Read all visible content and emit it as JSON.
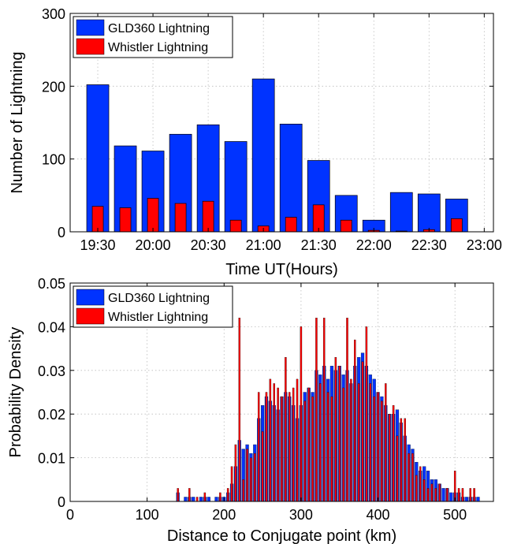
{
  "chart_data": [
    {
      "type": "bar",
      "grid": true,
      "xlabel": "Time UT(Hours)",
      "ylabel": "Number of Lightning",
      "ylim": [
        0,
        300
      ],
      "yticks": [
        0,
        100,
        200,
        300
      ],
      "xlim": [
        19.25,
        23.0833
      ],
      "xticks": [
        19.5,
        20,
        20.5,
        21,
        21.5,
        22,
        22.5,
        23
      ],
      "xtick_labels": [
        "19:30",
        "20:00",
        "20:30",
        "21:00",
        "21:30",
        "22:00",
        "22:30",
        "23:00"
      ],
      "legend_position": "top-left",
      "x": [
        19.5,
        19.75,
        20,
        20.25,
        20.5,
        20.75,
        21,
        21.25,
        21.5,
        21.75,
        22,
        22.25,
        22.5,
        22.75
      ],
      "series": [
        {
          "name": "GLD360 Lightning",
          "color": "#0033ff",
          "values": [
            202,
            118,
            111,
            134,
            147,
            124,
            210,
            148,
            98,
            50,
            16,
            54,
            52,
            45
          ]
        },
        {
          "name": "Whistler Lightning",
          "color": "#ff0000",
          "values": [
            35,
            33,
            46,
            39,
            42,
            16,
            8,
            20,
            37,
            16,
            2,
            1,
            3,
            18
          ]
        }
      ]
    },
    {
      "type": "bar",
      "grid": true,
      "xlabel": "Distance to Conjugate point (km)",
      "ylabel": "Probability Density",
      "xlim": [
        0,
        550
      ],
      "ylim": [
        0,
        0.05
      ],
      "xticks": [
        0,
        100,
        200,
        300,
        400,
        500
      ],
      "yticks": [
        0,
        0.01,
        0.02,
        0.03,
        0.04,
        0.05
      ],
      "legend_position": "top-left",
      "bin_width": 5,
      "series": [
        {
          "name": "GLD360 Lightning",
          "color": "#0033ff",
          "x": [
            140,
            145,
            150,
            155,
            160,
            165,
            170,
            175,
            180,
            185,
            190,
            195,
            200,
            205,
            210,
            215,
            220,
            225,
            230,
            235,
            240,
            245,
            250,
            255,
            260,
            265,
            270,
            275,
            280,
            285,
            290,
            295,
            300,
            305,
            310,
            315,
            320,
            325,
            330,
            335,
            340,
            345,
            350,
            355,
            360,
            365,
            370,
            375,
            380,
            385,
            390,
            395,
            400,
            405,
            410,
            415,
            420,
            425,
            430,
            435,
            440,
            445,
            450,
            455,
            460,
            465,
            470,
            475,
            480,
            485,
            490,
            495,
            500,
            505,
            510,
            515,
            520,
            525,
            530
          ],
          "values": [
            0.002,
            0.0,
            0.001,
            0.001,
            0.001,
            0.0,
            0.001,
            0.001,
            0.001,
            0.0,
            0.001,
            0.001,
            0.001,
            0.002,
            0.004,
            0.008,
            0.014,
            0.012,
            0.013,
            0.011,
            0.013,
            0.019,
            0.022,
            0.024,
            0.023,
            0.022,
            0.021,
            0.024,
            0.025,
            0.024,
            0.022,
            0.019,
            0.022,
            0.025,
            0.026,
            0.025,
            0.03,
            0.029,
            0.031,
            0.028,
            0.031,
            0.03,
            0.031,
            0.029,
            0.03,
            0.027,
            0.031,
            0.033,
            0.034,
            0.031,
            0.029,
            0.028,
            0.025,
            0.024,
            0.022,
            0.02,
            0.02,
            0.021,
            0.018,
            0.015,
            0.013,
            0.012,
            0.009,
            0.007,
            0.008,
            0.007,
            0.005,
            0.005,
            0.004,
            0.003,
            0.003,
            0.002,
            0.002,
            0.002,
            0.001,
            0.001,
            0.001,
            0.001,
            0.001
          ]
        },
        {
          "name": "Whistler Lightning",
          "color": "#ff0000",
          "x": [
            140,
            155,
            165,
            175,
            195,
            205,
            210,
            215,
            220,
            225,
            230,
            235,
            240,
            245,
            250,
            255,
            260,
            265,
            270,
            275,
            280,
            285,
            290,
            295,
            300,
            305,
            310,
            315,
            320,
            325,
            330,
            335,
            340,
            345,
            350,
            355,
            360,
            365,
            370,
            375,
            380,
            385,
            390,
            395,
            400,
            405,
            410,
            415,
            420,
            425,
            430,
            435,
            440,
            445,
            450,
            455,
            460,
            465,
            470,
            475,
            480,
            490,
            500,
            505,
            510,
            520,
            525
          ],
          "values": [
            0.003,
            0.003,
            0.001,
            0.002,
            0.002,
            0.003,
            0.008,
            0.013,
            0.042,
            0.005,
            0.012,
            0.01,
            0.011,
            0.025,
            0.016,
            0.025,
            0.028,
            0.027,
            0.026,
            0.024,
            0.033,
            0.025,
            0.026,
            0.028,
            0.04,
            0.023,
            0.026,
            0.024,
            0.042,
            0.027,
            0.042,
            0.025,
            0.024,
            0.033,
            0.031,
            0.026,
            0.042,
            0.028,
            0.037,
            0.027,
            0.032,
            0.04,
            0.027,
            0.024,
            0.025,
            0.023,
            0.027,
            0.02,
            0.022,
            0.015,
            0.019,
            0.019,
            0.011,
            0.011,
            0.006,
            0.008,
            0.005,
            0.003,
            0.004,
            0.003,
            0.004,
            0.003,
            0.007,
            0.003,
            0.003,
            0.003,
            0.003
          ]
        }
      ]
    }
  ]
}
